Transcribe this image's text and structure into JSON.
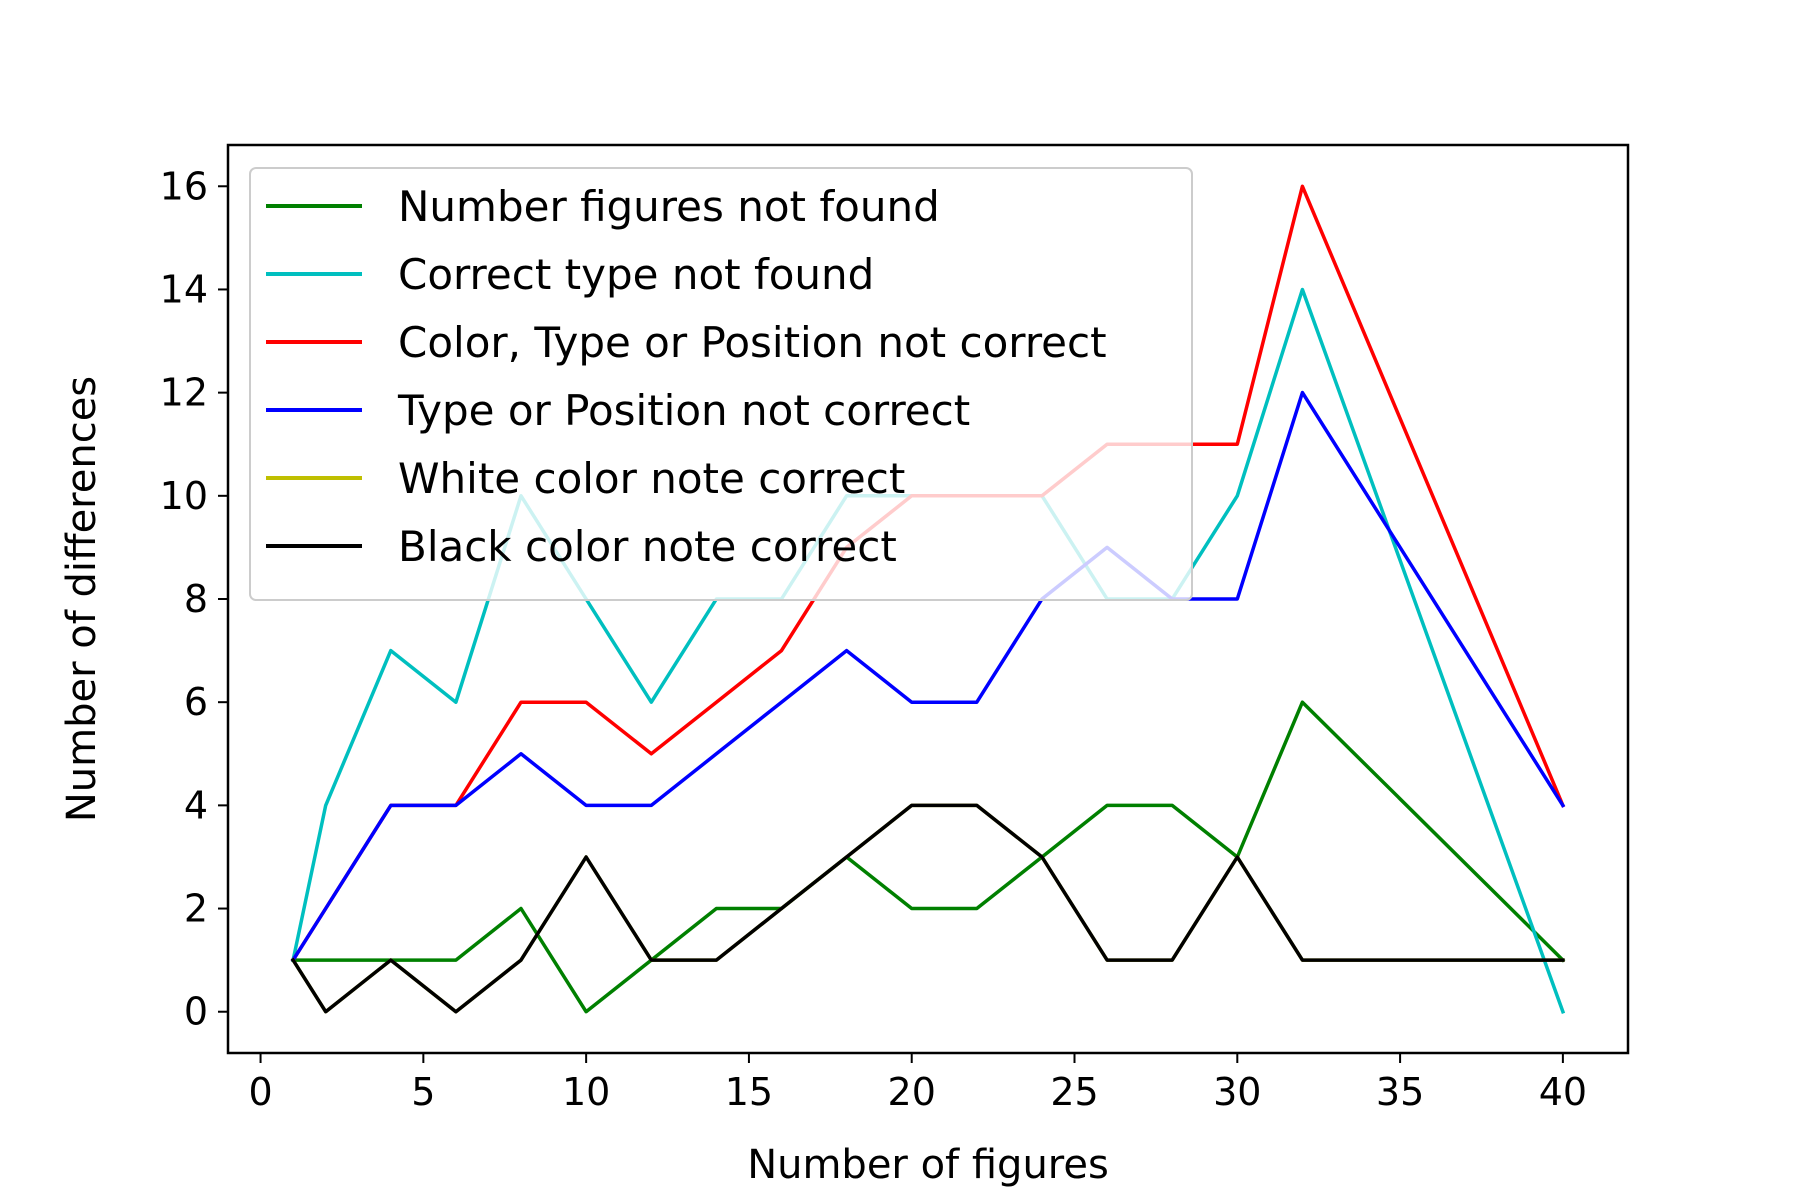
{
  "chart_data": {
    "type": "line",
    "title": "",
    "xlabel": "Number of figures",
    "ylabel": "Number of differences",
    "xlim": [
      -1,
      42
    ],
    "ylim": [
      -0.8,
      16.8
    ],
    "xticks": [
      0,
      5,
      10,
      15,
      20,
      25,
      30,
      35,
      40
    ],
    "yticks": [
      0,
      2,
      4,
      6,
      8,
      10,
      12,
      14,
      16
    ],
    "grid": false,
    "legend_position": "upper-left",
    "x": [
      1,
      2,
      4,
      6,
      8,
      10,
      12,
      14,
      16,
      18,
      20,
      22,
      24,
      26,
      28,
      30,
      32,
      40
    ],
    "series": [
      {
        "name": "Number figures not found",
        "color": "#008000",
        "values": [
          1,
          1,
          1,
          1,
          2,
          0,
          1,
          2,
          2,
          3,
          2,
          2,
          3,
          4,
          4,
          3,
          6,
          1
        ]
      },
      {
        "name": "Correct type not found",
        "color": "#00bfbf",
        "values": [
          1,
          4,
          7,
          6,
          10,
          8,
          6,
          8,
          8,
          10,
          10,
          10,
          10,
          8,
          8,
          10,
          14,
          0
        ]
      },
      {
        "name": "Color, Type or Position not correct",
        "color": "#ff0000",
        "values": [
          1,
          2,
          4,
          4,
          6,
          6,
          5,
          6,
          7,
          9,
          10,
          10,
          10,
          11,
          11,
          11,
          16,
          4
        ]
      },
      {
        "name": "Type or Position not correct",
        "color": "#0000ff",
        "values": [
          1,
          2,
          4,
          4,
          5,
          4,
          4,
          5,
          6,
          7,
          6,
          6,
          8,
          9,
          8,
          8,
          12,
          4
        ]
      },
      {
        "name": "White color note correct",
        "color": "#bfbf00",
        "values": [
          1,
          0,
          1,
          0,
          1,
          3,
          1,
          1,
          2,
          3,
          4,
          4,
          3,
          1,
          1,
          3,
          1,
          1
        ]
      },
      {
        "name": "Black color note correct",
        "color": "#000000",
        "values": [
          1,
          0,
          1,
          0,
          1,
          3,
          1,
          1,
          2,
          3,
          4,
          4,
          3,
          1,
          1,
          3,
          1,
          1
        ]
      }
    ]
  }
}
